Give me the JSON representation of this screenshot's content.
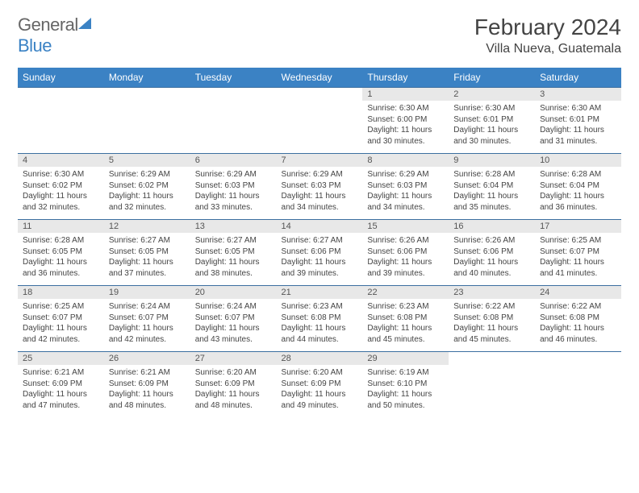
{
  "brand": {
    "name_part1": "General",
    "name_part2": "Blue"
  },
  "title": "February 2024",
  "location": "Villa Nueva, Guatemala",
  "colors": {
    "header_bg": "#3b82c4",
    "header_fg": "#ffffff",
    "daynum_bg": "#e8e8e8",
    "border": "#3b6fa0",
    "text": "#444444"
  },
  "day_headers": [
    "Sunday",
    "Monday",
    "Tuesday",
    "Wednesday",
    "Thursday",
    "Friday",
    "Saturday"
  ],
  "weeks": [
    [
      null,
      null,
      null,
      null,
      {
        "n": "1",
        "sr": "6:30 AM",
        "ss": "6:00 PM",
        "dl": "11 hours and 30 minutes."
      },
      {
        "n": "2",
        "sr": "6:30 AM",
        "ss": "6:01 PM",
        "dl": "11 hours and 30 minutes."
      },
      {
        "n": "3",
        "sr": "6:30 AM",
        "ss": "6:01 PM",
        "dl": "11 hours and 31 minutes."
      }
    ],
    [
      {
        "n": "4",
        "sr": "6:30 AM",
        "ss": "6:02 PM",
        "dl": "11 hours and 32 minutes."
      },
      {
        "n": "5",
        "sr": "6:29 AM",
        "ss": "6:02 PM",
        "dl": "11 hours and 32 minutes."
      },
      {
        "n": "6",
        "sr": "6:29 AM",
        "ss": "6:03 PM",
        "dl": "11 hours and 33 minutes."
      },
      {
        "n": "7",
        "sr": "6:29 AM",
        "ss": "6:03 PM",
        "dl": "11 hours and 34 minutes."
      },
      {
        "n": "8",
        "sr": "6:29 AM",
        "ss": "6:03 PM",
        "dl": "11 hours and 34 minutes."
      },
      {
        "n": "9",
        "sr": "6:28 AM",
        "ss": "6:04 PM",
        "dl": "11 hours and 35 minutes."
      },
      {
        "n": "10",
        "sr": "6:28 AM",
        "ss": "6:04 PM",
        "dl": "11 hours and 36 minutes."
      }
    ],
    [
      {
        "n": "11",
        "sr": "6:28 AM",
        "ss": "6:05 PM",
        "dl": "11 hours and 36 minutes."
      },
      {
        "n": "12",
        "sr": "6:27 AM",
        "ss": "6:05 PM",
        "dl": "11 hours and 37 minutes."
      },
      {
        "n": "13",
        "sr": "6:27 AM",
        "ss": "6:05 PM",
        "dl": "11 hours and 38 minutes."
      },
      {
        "n": "14",
        "sr": "6:27 AM",
        "ss": "6:06 PM",
        "dl": "11 hours and 39 minutes."
      },
      {
        "n": "15",
        "sr": "6:26 AM",
        "ss": "6:06 PM",
        "dl": "11 hours and 39 minutes."
      },
      {
        "n": "16",
        "sr": "6:26 AM",
        "ss": "6:06 PM",
        "dl": "11 hours and 40 minutes."
      },
      {
        "n": "17",
        "sr": "6:25 AM",
        "ss": "6:07 PM",
        "dl": "11 hours and 41 minutes."
      }
    ],
    [
      {
        "n": "18",
        "sr": "6:25 AM",
        "ss": "6:07 PM",
        "dl": "11 hours and 42 minutes."
      },
      {
        "n": "19",
        "sr": "6:24 AM",
        "ss": "6:07 PM",
        "dl": "11 hours and 42 minutes."
      },
      {
        "n": "20",
        "sr": "6:24 AM",
        "ss": "6:07 PM",
        "dl": "11 hours and 43 minutes."
      },
      {
        "n": "21",
        "sr": "6:23 AM",
        "ss": "6:08 PM",
        "dl": "11 hours and 44 minutes."
      },
      {
        "n": "22",
        "sr": "6:23 AM",
        "ss": "6:08 PM",
        "dl": "11 hours and 45 minutes."
      },
      {
        "n": "23",
        "sr": "6:22 AM",
        "ss": "6:08 PM",
        "dl": "11 hours and 45 minutes."
      },
      {
        "n": "24",
        "sr": "6:22 AM",
        "ss": "6:08 PM",
        "dl": "11 hours and 46 minutes."
      }
    ],
    [
      {
        "n": "25",
        "sr": "6:21 AM",
        "ss": "6:09 PM",
        "dl": "11 hours and 47 minutes."
      },
      {
        "n": "26",
        "sr": "6:21 AM",
        "ss": "6:09 PM",
        "dl": "11 hours and 48 minutes."
      },
      {
        "n": "27",
        "sr": "6:20 AM",
        "ss": "6:09 PM",
        "dl": "11 hours and 48 minutes."
      },
      {
        "n": "28",
        "sr": "6:20 AM",
        "ss": "6:09 PM",
        "dl": "11 hours and 49 minutes."
      },
      {
        "n": "29",
        "sr": "6:19 AM",
        "ss": "6:10 PM",
        "dl": "11 hours and 50 minutes."
      },
      null,
      null
    ]
  ],
  "labels": {
    "sunrise": "Sunrise:",
    "sunset": "Sunset:",
    "daylight": "Daylight:"
  }
}
